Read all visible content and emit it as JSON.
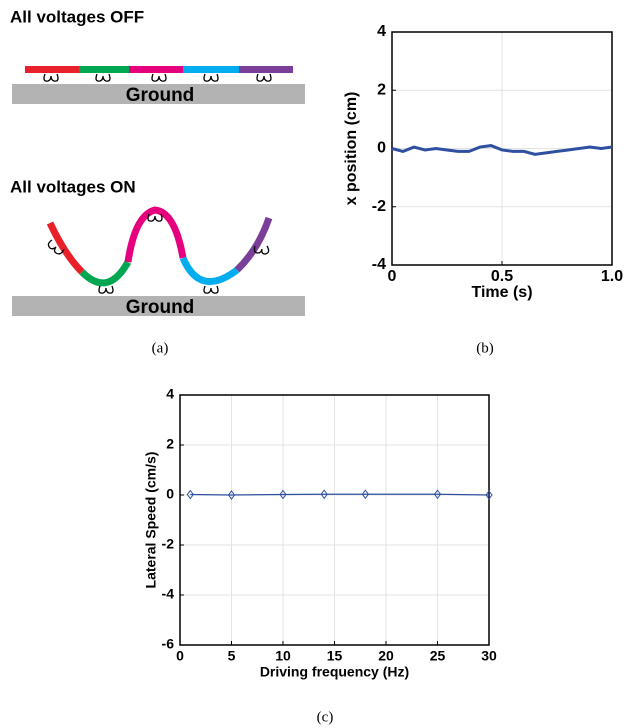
{
  "diagram": {
    "off_title": "All voltages OFF",
    "off_ground": "Ground",
    "on_title": "All voltages ON",
    "on_ground": "Ground",
    "caption": "(a)"
  },
  "chart_data": [
    {
      "type": "line",
      "xlabel": "Time (s)",
      "ylabel": "x position (cm)",
      "caption": "(b)",
      "x": [
        0,
        0.05,
        0.1,
        0.15,
        0.2,
        0.25,
        0.3,
        0.35,
        0.4,
        0.45,
        0.5,
        0.55,
        0.6,
        0.65,
        0.7,
        0.75,
        0.8,
        0.85,
        0.9,
        0.95,
        1
      ],
      "series": [
        {
          "name": "x position",
          "color": "#2f4fa0",
          "values": [
            0,
            -0.1,
            0.05,
            -0.05,
            0,
            -0.05,
            -0.1,
            -0.1,
            0.05,
            0.1,
            -0.05,
            -0.1,
            -0.1,
            -0.2,
            -0.15,
            -0.1,
            -0.05,
            0,
            0.05,
            0,
            0.05
          ]
        }
      ],
      "xlim": [
        0,
        1
      ],
      "xticks": [
        0,
        0.5,
        {
          "value": 1,
          "label": "1.0"
        }
      ],
      "ylim": [
        -4,
        4
      ],
      "yticks": [
        -4,
        -2,
        0,
        2,
        4
      ],
      "grid": true,
      "markers": false
    },
    {
      "type": "line",
      "xlabel": "Driving frequency (Hz)",
      "ylabel": "Lateral Speed (cm/s)",
      "caption": "(c)",
      "x": [
        1,
        5,
        10,
        14,
        18,
        25,
        30
      ],
      "series": [
        {
          "name": "Lateral speed",
          "color": "#2f4fa0",
          "values": [
            0.02,
            0,
            0.02,
            0.03,
            0.03,
            0.03,
            0
          ]
        }
      ],
      "xlim": [
        0,
        30
      ],
      "xticks": [
        0,
        5,
        10,
        15,
        20,
        25,
        30
      ],
      "ylim": [
        -6,
        4
      ],
      "yticks": [
        -6,
        -4,
        -2,
        0,
        2,
        4
      ],
      "grid": true,
      "markers": true
    }
  ]
}
